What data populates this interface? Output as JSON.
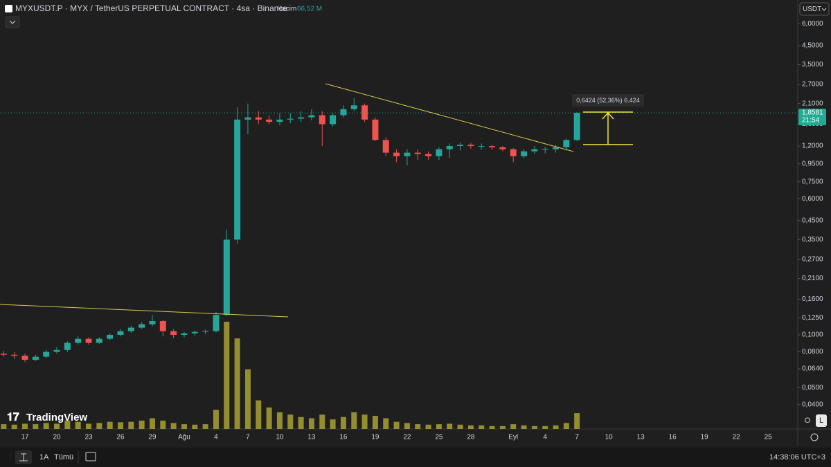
{
  "chart_data": {
    "type": "candlestick",
    "title": "MYXUSDT.P · MYX / TetherUS PERPETUAL CONTRACT · 4sa · Binance",
    "volume_label": "Hacim",
    "volume_text": "66,52 M",
    "currency": "USDT",
    "logo": "TradingView",
    "scale_buttons": [
      "O",
      "L"
    ],
    "range_buttons": [
      "1A",
      "Tümü"
    ],
    "clock": "14:38:06 UTC+3",
    "measure_text": "0,6424 (52,36%) 6.424",
    "price_line": {
      "value": 1.8581,
      "label": "1,8581",
      "countdown": "21:54"
    },
    "log_scale": true,
    "grid": false,
    "up_color": "#26a69a",
    "down_color": "#ef5350",
    "volume_color": "#a9a232",
    "categories": [
      null,
      null,
      "17",
      null,
      null,
      "20",
      null,
      null,
      "23",
      null,
      null,
      "26",
      null,
      null,
      "29",
      null,
      null,
      "Ağu",
      null,
      null,
      "4",
      null,
      null,
      "7",
      null,
      null,
      "10",
      null,
      null,
      "13",
      null,
      null,
      "16",
      null,
      null,
      "19",
      null,
      null,
      "22",
      null,
      null,
      "25",
      null,
      null,
      "28",
      null,
      null,
      null,
      "Eyl",
      null,
      null,
      "4",
      null,
      null,
      "7",
      null,
      null,
      "10",
      null,
      null,
      "13",
      null,
      null,
      "16",
      null,
      null,
      "19",
      null,
      null,
      "22",
      null,
      null,
      "25",
      null
    ],
    "open": [
      0.078,
      0.077,
      0.076,
      0.072,
      0.075,
      0.08,
      0.082,
      0.09,
      0.095,
      0.09,
      0.095,
      0.1,
      0.105,
      0.11,
      0.115,
      0.12,
      0.105,
      0.1,
      0.102,
      0.104,
      0.105,
      0.13,
      0.35,
      1.7,
      1.75,
      1.7,
      1.65,
      1.7,
      1.72,
      1.75,
      1.8,
      1.6,
      1.8,
      1.95,
      2.05,
      1.7,
      1.3,
      1.1,
      1.05,
      1.1,
      1.08,
      1.05,
      1.15,
      1.2,
      1.22,
      1.2,
      1.2,
      1.18,
      1.15,
      1.05,
      1.12,
      1.15,
      1.15,
      1.18,
      1.3,
      null,
      null,
      null,
      null,
      null,
      null,
      null,
      null,
      null,
      null,
      null,
      null,
      null,
      null,
      null,
      null,
      null,
      null,
      null
    ],
    "high": [
      0.081,
      0.08,
      0.078,
      0.077,
      0.082,
      0.085,
      0.092,
      0.098,
      0.097,
      0.097,
      0.102,
      0.108,
      0.113,
      0.118,
      0.13,
      0.122,
      0.108,
      0.104,
      0.106,
      0.107,
      0.135,
      0.4,
      2.0,
      2.1,
      1.9,
      1.8,
      1.85,
      1.85,
      1.9,
      1.95,
      1.9,
      1.85,
      2.05,
      2.25,
      2.1,
      1.75,
      1.35,
      1.15,
      1.15,
      1.15,
      1.12,
      1.18,
      1.24,
      1.26,
      1.25,
      1.24,
      1.22,
      1.2,
      1.17,
      1.15,
      1.2,
      1.19,
      1.22,
      1.32,
      1.87,
      null,
      null,
      null,
      null,
      null,
      null,
      null,
      null,
      null,
      null,
      null,
      null,
      null,
      null,
      null,
      null,
      null,
      null,
      null
    ],
    "low": [
      0.075,
      0.073,
      0.07,
      0.071,
      0.074,
      0.078,
      0.08,
      0.088,
      0.088,
      0.089,
      0.093,
      0.098,
      0.103,
      0.108,
      0.112,
      0.098,
      0.096,
      0.097,
      0.099,
      0.101,
      0.103,
      0.128,
      0.33,
      1.4,
      1.6,
      1.6,
      1.58,
      1.62,
      1.65,
      1.68,
      1.2,
      1.55,
      1.75,
      1.9,
      1.65,
      1.28,
      1.05,
      0.97,
      0.93,
      1.0,
      1.0,
      1.0,
      1.03,
      1.13,
      1.16,
      1.14,
      1.14,
      1.12,
      0.97,
      1.02,
      1.08,
      1.09,
      1.1,
      1.13,
      1.28,
      null,
      null,
      null,
      null,
      null,
      null,
      null,
      null,
      null,
      null,
      null,
      null,
      null,
      null,
      null,
      null,
      null,
      null,
      null
    ],
    "close": [
      0.077,
      0.076,
      0.072,
      0.075,
      0.08,
      0.082,
      0.09,
      0.095,
      0.09,
      0.095,
      0.1,
      0.105,
      0.11,
      0.115,
      0.12,
      0.105,
      0.1,
      0.102,
      0.104,
      0.105,
      0.13,
      0.35,
      1.7,
      1.75,
      1.7,
      1.65,
      1.7,
      1.72,
      1.75,
      1.8,
      1.6,
      1.8,
      1.95,
      2.05,
      1.7,
      1.3,
      1.1,
      1.05,
      1.1,
      1.08,
      1.05,
      1.15,
      1.2,
      1.22,
      1.2,
      1.2,
      1.18,
      1.15,
      1.05,
      1.12,
      1.15,
      1.15,
      1.18,
      1.3,
      1.8581,
      null,
      null,
      null,
      null,
      null,
      null,
      null,
      null,
      null,
      null,
      null,
      null,
      null,
      null,
      null,
      null,
      null,
      null,
      null
    ],
    "volume": [
      20,
      18,
      22,
      20,
      25,
      22,
      35,
      30,
      22,
      25,
      30,
      28,
      30,
      35,
      45,
      35,
      25,
      20,
      18,
      20,
      80,
      450,
      380,
      250,
      120,
      90,
      70,
      60,
      50,
      45,
      60,
      40,
      50,
      70,
      60,
      55,
      45,
      30,
      25,
      20,
      18,
      20,
      22,
      18,
      15,
      15,
      12,
      12,
      20,
      15,
      12,
      12,
      15,
      25,
      66.52,
      null,
      null,
      null,
      null,
      null,
      null,
      null,
      null,
      null,
      null,
      null,
      null,
      null,
      null,
      null,
      null,
      null,
      null,
      null
    ],
    "ylim": [
      0.029,
      8.2
    ],
    "yticks": [
      {
        "value": 6,
        "label": "6,0000"
      },
      {
        "value": 4.5,
        "label": "4,5000"
      },
      {
        "value": 3.5,
        "label": "3,5000"
      },
      {
        "value": 2.7,
        "label": "2,7000"
      },
      {
        "value": 2.1,
        "label": "2,1000"
      },
      {
        "value": 1.6,
        "label": "1,6000"
      },
      {
        "value": 1.2,
        "label": "1,2000"
      },
      {
        "value": 0.95,
        "label": "0,9500"
      },
      {
        "value": 0.75,
        "label": "0,7500"
      },
      {
        "value": 0.6,
        "label": "0,6000"
      },
      {
        "value": 0.45,
        "label": "0,4500"
      },
      {
        "value": 0.35,
        "label": "0,3500"
      },
      {
        "value": 0.27,
        "label": "0,2700"
      },
      {
        "value": 0.21,
        "label": "0,2100"
      },
      {
        "value": 0.16,
        "label": "0,1600"
      },
      {
        "value": 0.125,
        "label": "0,1250"
      },
      {
        "value": 0.1,
        "label": "0,1000"
      },
      {
        "value": 0.08,
        "label": "0,0800"
      },
      {
        "value": 0.064,
        "label": "0,0640"
      },
      {
        "value": 0.05,
        "label": "0,0500"
      },
      {
        "value": 0.04,
        "label": "0,0400"
      }
    ]
  }
}
